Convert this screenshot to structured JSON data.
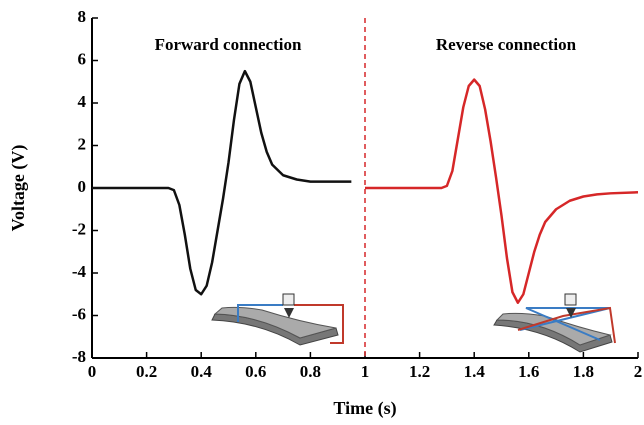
{
  "chart_data": {
    "type": "line",
    "xlabel": "Time (s)",
    "ylabel": "Voltage (V)",
    "annotations": [
      "Forward connection",
      "Reverse connection"
    ],
    "vline": 1,
    "vline_color": "#d62728",
    "xlim": [
      0,
      2
    ],
    "xticks": [
      0,
      0.2,
      0.4,
      0.6,
      0.8,
      1,
      1.2,
      1.4,
      1.6,
      1.8,
      2
    ],
    "ylim": [
      -8,
      8
    ],
    "yticks": [
      -8,
      -6,
      -4,
      -2,
      0,
      2,
      4,
      6,
      8
    ],
    "series": [
      {
        "color": "#111111",
        "x": [
          0,
          0.1,
          0.2,
          0.28,
          0.3,
          0.32,
          0.34,
          0.36,
          0.38,
          0.4,
          0.42,
          0.44,
          0.46,
          0.48,
          0.5,
          0.52,
          0.54,
          0.56,
          0.58,
          0.6,
          0.62,
          0.64,
          0.66,
          0.7,
          0.75,
          0.8,
          0.85,
          0.9,
          0.95
        ],
        "values": [
          0,
          0,
          0,
          0,
          -0.1,
          -0.8,
          -2.2,
          -3.8,
          -4.8,
          -5,
          -4.6,
          -3.5,
          -2,
          -0.5,
          1.2,
          3.2,
          4.9,
          5.5,
          5,
          3.8,
          2.6,
          1.7,
          1.1,
          0.6,
          0.4,
          0.3,
          0.3,
          0.3,
          0.3
        ]
      },
      {
        "color": "#d62728",
        "x": [
          1,
          1.1,
          1.2,
          1.28,
          1.3,
          1.32,
          1.34,
          1.36,
          1.38,
          1.4,
          1.42,
          1.44,
          1.46,
          1.48,
          1.5,
          1.52,
          1.54,
          1.56,
          1.58,
          1.6,
          1.62,
          1.64,
          1.66,
          1.7,
          1.75,
          1.8,
          1.85,
          1.9,
          2
        ],
        "values": [
          0,
          0,
          0,
          0,
          0.1,
          0.8,
          2.3,
          3.8,
          4.8,
          5.1,
          4.8,
          3.7,
          2.2,
          0.5,
          -1.3,
          -3.3,
          -4.9,
          -5.4,
          -5,
          -4,
          -3,
          -2.2,
          -1.6,
          -1,
          -0.6,
          -0.4,
          -0.3,
          -0.25,
          -0.2
        ]
      }
    ]
  }
}
